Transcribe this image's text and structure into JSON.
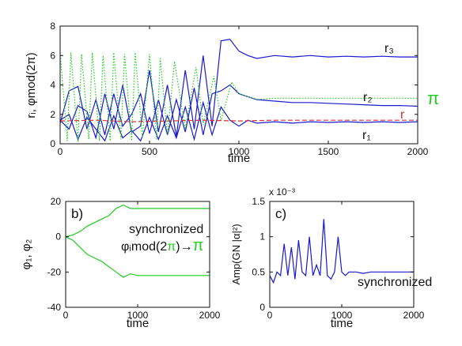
{
  "chart_data": [
    {
      "id": "a",
      "type": "line",
      "xlabel": "time",
      "ylabel": "rᵢ, φmod(2π)",
      "xlim": [
        0,
        2000
      ],
      "ylim": [
        0,
        8
      ],
      "xticks": [
        0,
        500,
        1000,
        1500,
        2000
      ],
      "yticks": [
        0,
        2,
        4,
        6,
        8
      ],
      "grid": false,
      "annotations": [
        {
          "text": "r₃",
          "color": "#111111"
        },
        {
          "text": "r₂",
          "color": "#111111"
        },
        {
          "text": "r",
          "color": "#e03030"
        },
        {
          "text": "r₁",
          "color": "#111111"
        },
        {
          "text": "π",
          "color": "#22cc22"
        }
      ],
      "series": [
        {
          "color": "#1a1ad0",
          "style": "solid",
          "x": [
            0,
            50,
            100,
            150,
            200,
            250,
            300,
            350,
            400,
            450,
            500,
            550,
            600,
            650,
            700,
            750,
            800,
            850,
            900,
            950,
            1000,
            1050,
            1100,
            1200,
            1300,
            1400,
            1500,
            1600,
            1700,
            1800,
            1900,
            2000
          ],
          "y": [
            1.6,
            1.0,
            2.6,
            2.2,
            0.4,
            3.4,
            1.0,
            4.0,
            0.8,
            1.2,
            5.0,
            0.8,
            4.0,
            0.5,
            5.0,
            1.0,
            6.0,
            1.2,
            7.0,
            7.1,
            6.3,
            6.0,
            5.8,
            6.0,
            5.9,
            6.0,
            5.9,
            5.95,
            5.9,
            5.95,
            5.9,
            5.9
          ]
        },
        {
          "color": "#1a1ad0",
          "style": "solid",
          "x": [
            0,
            50,
            100,
            150,
            200,
            250,
            300,
            350,
            400,
            450,
            500,
            550,
            600,
            650,
            700,
            750,
            800,
            850,
            900,
            950,
            1000,
            1050,
            1100,
            1200,
            1300,
            1400,
            1500,
            1600,
            1700,
            1800,
            1900,
            2000
          ],
          "y": [
            1.4,
            3.6,
            3.9,
            1.0,
            3.0,
            0.6,
            3.4,
            1.2,
            2.0,
            3.4,
            0.7,
            3.0,
            0.6,
            3.0,
            0.8,
            3.8,
            0.6,
            3.4,
            3.6,
            4.0,
            3.4,
            3.2,
            3.0,
            2.9,
            2.8,
            2.8,
            2.75,
            2.7,
            2.65,
            2.6,
            2.6,
            2.55
          ]
        },
        {
          "color": "#1a1ad0",
          "style": "solid",
          "x": [
            0,
            50,
            100,
            150,
            200,
            250,
            300,
            350,
            400,
            450,
            500,
            550,
            600,
            650,
            700,
            750,
            800,
            850,
            900,
            950,
            1000,
            1050,
            1100,
            1200,
            1300,
            1400,
            1500,
            1600,
            1700,
            1800,
            1900,
            2000
          ],
          "y": [
            1.6,
            2.0,
            0.3,
            1.8,
            1.0,
            0.2,
            1.9,
            0.4,
            0.9,
            0.2,
            1.8,
            0.3,
            1.9,
            0.4,
            2.5,
            0.3,
            2.8,
            0.6,
            2.5,
            1.6,
            1.2,
            1.6,
            1.4,
            1.5,
            1.4,
            1.5,
            1.45,
            1.5,
            1.45,
            1.5,
            1.45,
            1.5
          ]
        },
        {
          "color": "#e03030",
          "style": "dashed",
          "x": [
            0,
            200,
            400,
            600,
            800,
            1000,
            1200,
            1400,
            1600,
            1800,
            2000
          ],
          "y": [
            1.55,
            1.6,
            1.5,
            1.55,
            1.6,
            1.55,
            1.6,
            1.6,
            1.6,
            1.6,
            1.6
          ]
        },
        {
          "color": "#22cc22",
          "style": "dotted",
          "x": [
            0,
            40,
            60,
            100,
            120,
            160,
            180,
            220,
            240,
            280,
            300,
            340,
            360,
            400,
            420,
            460,
            500,
            540,
            560,
            600,
            640,
            700,
            760,
            800,
            860,
            900,
            960,
            1000,
            1050,
            1100,
            1200,
            1400,
            1600,
            1800,
            2000
          ],
          "y": [
            6.2,
            0.2,
            6.2,
            0.1,
            6.1,
            0.3,
            6.2,
            0.2,
            6.0,
            0.2,
            6.2,
            0.3,
            6.1,
            0.2,
            6.2,
            0.4,
            6.1,
            0.3,
            5.8,
            0.6,
            5.6,
            1.0,
            5.2,
            1.3,
            4.6,
            1.6,
            4.2,
            3.4,
            3.2,
            3.0,
            3.1,
            3.1,
            3.1,
            3.1,
            3.1
          ]
        }
      ]
    },
    {
      "id": "b",
      "type": "line",
      "panel_label": "b)",
      "xlabel": "time",
      "ylabel": "φ₁, φ₂",
      "xlim": [
        0,
        2000
      ],
      "ylim": [
        -40,
        20
      ],
      "xticks": [
        0,
        1000,
        2000
      ],
      "yticks": [
        -40,
        -20,
        0,
        20
      ],
      "annotations": [
        "synchronized",
        "φᵢmod(2",
        "π",
        ")→",
        "π"
      ],
      "series": [
        {
          "color": "#22cc22",
          "x": [
            0,
            100,
            200,
            300,
            400,
            500,
            600,
            700,
            800,
            900,
            1000,
            1200,
            1500,
            2000
          ],
          "y": [
            0,
            1,
            3,
            6,
            8,
            10,
            12,
            16,
            18,
            16,
            16,
            16,
            16,
            16
          ]
        },
        {
          "color": "#22cc22",
          "x": [
            0,
            100,
            200,
            300,
            400,
            500,
            600,
            700,
            800,
            900,
            1000,
            1200,
            1500,
            2000
          ],
          "y": [
            0,
            -2,
            -6,
            -10,
            -12,
            -14,
            -17,
            -20,
            -23,
            -21,
            -22,
            -22,
            -22,
            -22
          ]
        }
      ]
    },
    {
      "id": "c",
      "type": "line",
      "panel_label": "c)",
      "xlabel": "time",
      "ylabel": "Amp(GN |α|²)",
      "exponent_label": "x 10⁻³",
      "xlim": [
        0,
        2000
      ],
      "ylim": [
        0,
        1.5
      ],
      "xticks": [
        0,
        1000,
        2000
      ],
      "yticks": [
        0,
        0.5,
        1,
        1.5
      ],
      "annotations": [
        "synchronized"
      ],
      "series": [
        {
          "color": "#1a1ad0",
          "x": [
            0,
            50,
            100,
            150,
            200,
            250,
            300,
            350,
            400,
            450,
            500,
            550,
            600,
            650,
            700,
            750,
            800,
            850,
            900,
            950,
            1000,
            1050,
            1100,
            1200,
            1300,
            1400,
            1500,
            1600,
            1700,
            1800,
            1900,
            2000
          ],
          "y": [
            0.45,
            0.35,
            0.5,
            0.45,
            0.9,
            0.45,
            0.85,
            0.4,
            0.95,
            0.5,
            0.45,
            1.0,
            0.45,
            0.6,
            0.45,
            1.25,
            0.45,
            0.4,
            0.5,
            1.0,
            0.5,
            0.45,
            0.5,
            0.5,
            0.48,
            0.5,
            0.5,
            0.5,
            0.5,
            0.5,
            0.5,
            0.5
          ]
        }
      ]
    }
  ]
}
